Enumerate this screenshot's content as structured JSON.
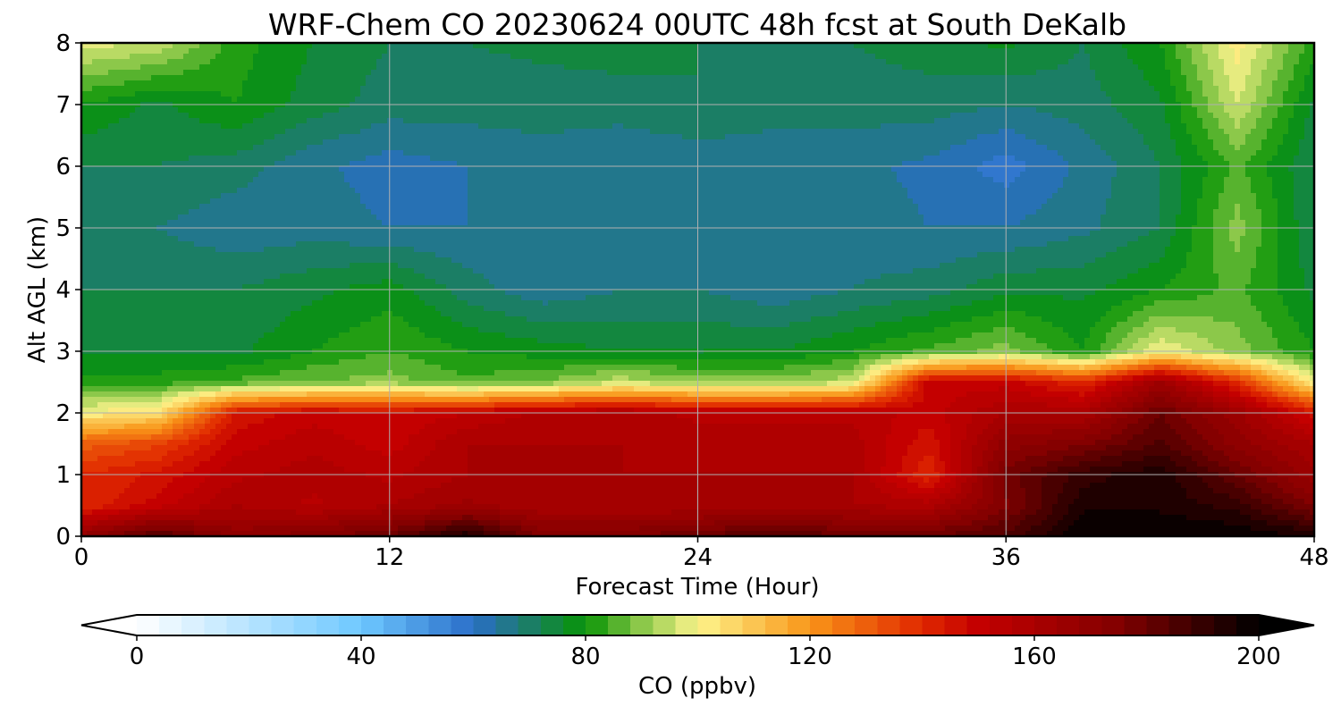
{
  "chart_data": {
    "type": "heatmap",
    "title": "WRF-Chem CO  20230624 00UTC 48h fcst at South DeKalb",
    "xlabel": "Forecast Time (Hour)",
    "ylabel": "Alt AGL (km)",
    "xlim": [
      0,
      48
    ],
    "ylim": [
      0,
      8
    ],
    "xticks": [
      0,
      12,
      24,
      36,
      48
    ],
    "yticks": [
      0,
      1,
      2,
      3,
      4,
      5,
      6,
      7,
      8
    ],
    "grid": true,
    "x": [
      0,
      3,
      6,
      9,
      12,
      15,
      18,
      21,
      24,
      27,
      30,
      33,
      36,
      39,
      42,
      45,
      48
    ],
    "y": [
      0,
      0.5,
      1,
      1.5,
      2,
      2.5,
      3,
      4,
      5,
      6,
      7,
      8
    ],
    "z": [
      [
        170,
        185,
        170,
        175,
        180,
        195,
        175,
        175,
        180,
        185,
        180,
        180,
        185,
        200,
        200,
        200,
        195
      ],
      [
        140,
        150,
        160,
        155,
        160,
        165,
        160,
        160,
        160,
        160,
        160,
        158,
        175,
        195,
        195,
        190,
        175
      ],
      [
        140,
        145,
        155,
        158,
        155,
        160,
        160,
        160,
        160,
        160,
        160,
        140,
        178,
        190,
        195,
        180,
        165
      ],
      [
        130,
        135,
        150,
        155,
        150,
        160,
        160,
        160,
        158,
        158,
        158,
        145,
        170,
        175,
        185,
        170,
        160
      ],
      [
        100,
        105,
        145,
        150,
        148,
        152,
        157,
        158,
        155,
        155,
        155,
        150,
        160,
        160,
        180,
        165,
        145
      ],
      [
        82,
        82,
        85,
        88,
        90,
        85,
        88,
        95,
        90,
        90,
        95,
        150,
        150,
        140,
        165,
        140,
        100
      ],
      [
        75,
        75,
        75,
        80,
        84,
        80,
        78,
        76,
        76,
        76,
        80,
        85,
        90,
        80,
        100,
        90,
        80
      ],
      [
        72,
        72,
        72,
        75,
        78,
        70,
        65,
        68,
        68,
        65,
        68,
        70,
        75,
        75,
        80,
        85,
        75
      ],
      [
        70,
        68,
        65,
        66,
        64,
        64,
        66,
        64,
        65,
        66,
        66,
        64,
        64,
        67,
        72,
        90,
        72
      ],
      [
        72,
        72,
        70,
        65,
        62,
        64,
        66,
        64,
        65,
        65,
        65,
        63,
        58,
        65,
        72,
        85,
        72
      ],
      [
        80,
        75,
        80,
        74,
        70,
        70,
        70,
        70,
        72,
        70,
        70,
        70,
        68,
        70,
        75,
        96,
        75
      ],
      [
        98,
        95,
        82,
        76,
        72,
        72,
        73,
        74,
        72,
        70,
        72,
        74,
        77,
        72,
        80,
        102,
        82
      ]
    ],
    "colorbar": {
      "label": "CO  (ppbv)",
      "min": 0,
      "max": 200,
      "step": 4,
      "ticks": [
        0,
        40,
        80,
        120,
        160,
        200
      ],
      "extend": "both",
      "colors": [
        "#ffffff",
        "#6ec8ff",
        "#2a6ec8",
        "#1f7a78",
        "#079405",
        "#8cc84a",
        "#fdf48c",
        "#f99518",
        "#e02800",
        "#c40000",
        "#820000",
        "#000000"
      ],
      "color_positions": [
        0,
        40,
        60,
        68,
        80,
        90,
        100,
        120,
        140,
        150,
        175,
        200
      ]
    }
  }
}
